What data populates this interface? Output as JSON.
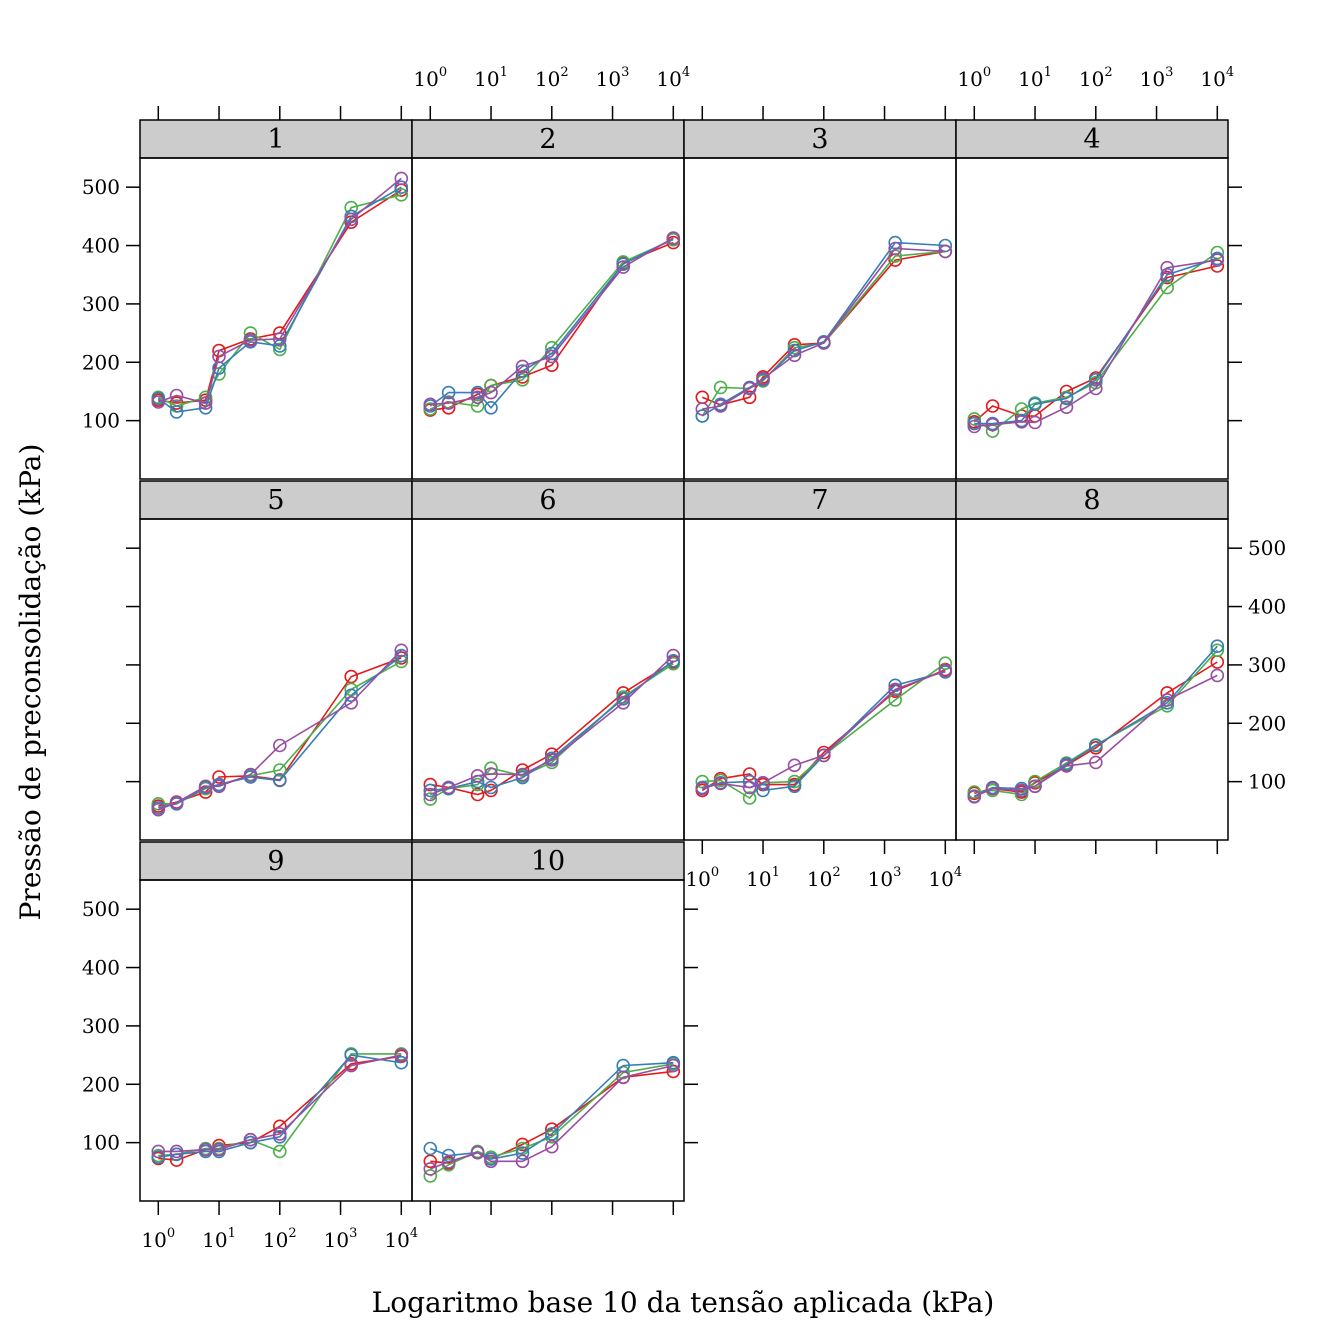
{
  "chart_data": {
    "type": "line",
    "xlabel": "Logaritmo base 10 da tensão aplicada (kPa)",
    "ylabel": "Pressão de preconsolidação (kPa)",
    "x_scale": "log10",
    "xlim": [
      0.5,
      15000
    ],
    "ylim": [
      0,
      550
    ],
    "x_ticks": [
      1,
      10,
      100,
      1000,
      10000
    ],
    "x_tick_base": "10",
    "x_tick_exponents": [
      "0",
      "1",
      "2",
      "3",
      "4"
    ],
    "y_ticks": [
      100,
      200,
      300,
      400,
      500
    ],
    "y_tick_labels": [
      "100",
      "200",
      "300",
      "400",
      "500"
    ],
    "x": [
      1,
      2,
      6,
      10,
      33,
      100,
      1500,
      10000
    ],
    "marker": "open-circle",
    "series_colors": [
      "#E41A1C",
      "#4DAF4A",
      "#377EB8",
      "#984EA3"
    ],
    "panels": [
      {
        "label": "1",
        "series": [
          {
            "values": [
              135,
              130,
              135,
              220,
              240,
              250,
              440,
              495
            ]
          },
          {
            "values": [
              140,
              125,
              140,
              180,
              250,
              222,
              465,
              487
            ]
          },
          {
            "values": [
              138,
              115,
              122,
              190,
              235,
              228,
              450,
              500
            ]
          },
          {
            "values": [
              132,
              143,
              130,
              210,
              238,
              240,
              445,
              515
            ]
          }
        ]
      },
      {
        "label": "2",
        "series": [
          {
            "values": [
              118,
              122,
              145,
              160,
              175,
              195,
              370,
              405
            ]
          },
          {
            "values": [
              120,
              132,
              125,
              160,
              170,
              225,
              372,
              410
            ]
          },
          {
            "values": [
              125,
              148,
              148,
              122,
              185,
              215,
              368,
              412
            ]
          },
          {
            "values": [
              128,
              130,
              140,
              148,
              193,
              210,
              363,
              413
            ]
          }
        ]
      },
      {
        "label": "3",
        "series": [
          {
            "values": [
              140,
              127,
              140,
              175,
              230,
              233,
              375,
              390
            ]
          },
          {
            "values": [
              108,
              157,
              155,
              168,
              225,
              233,
              382,
              390
            ]
          },
          {
            "values": [
              108,
              128,
              157,
              170,
              220,
              235,
              405,
              400
            ]
          },
          {
            "values": [
              120,
              125,
              155,
              172,
              212,
              233,
              395,
              390
            ]
          }
        ]
      },
      {
        "label": "4",
        "series": [
          {
            "values": [
              98,
              125,
              108,
              108,
              150,
              173,
              345,
              365
            ]
          },
          {
            "values": [
              103,
              82,
              120,
              130,
              140,
              165,
              328,
              388
            ]
          },
          {
            "values": [
              95,
              95,
              100,
              128,
              138,
              170,
              350,
              378
            ]
          },
          {
            "values": [
              90,
              93,
              98,
              97,
              123,
              155,
              362,
              375
            ]
          }
        ]
      },
      {
        "label": "5",
        "series": [
          {
            "values": [
              58,
              65,
              82,
              108,
              110,
              103,
              280,
              312
            ]
          },
          {
            "values": [
              62,
              62,
              88,
              95,
              110,
              120,
              258,
              306
            ]
          },
          {
            "values": [
              55,
              62,
              90,
              95,
              108,
              102,
              248,
              316
            ]
          },
          {
            "values": [
              52,
              64,
              92,
              92,
              112,
              162,
              235,
              325
            ]
          }
        ]
      },
      {
        "label": "6",
        "series": [
          {
            "values": [
              95,
              90,
              78,
              85,
              120,
              147,
              252,
              305
            ]
          },
          {
            "values": [
              70,
              88,
              95,
              123,
              110,
              133,
              245,
              302
            ]
          },
          {
            "values": [
              85,
              88,
              100,
              90,
              107,
              140,
              242,
              307
            ]
          },
          {
            "values": [
              78,
              90,
              110,
              113,
              112,
              137,
              235,
              316
            ]
          }
        ]
      },
      {
        "label": "7",
        "series": [
          {
            "values": [
              85,
              105,
              113,
              95,
              95,
              150,
              255,
              292
            ]
          },
          {
            "values": [
              100,
              102,
              72,
              98,
              100,
              145,
              240,
              303
            ]
          },
          {
            "values": [
              90,
              98,
              100,
              85,
              92,
              145,
              265,
              288
            ]
          },
          {
            "values": [
              88,
              97,
              90,
              98,
              128,
              145,
              258,
              290
            ]
          }
        ]
      },
      {
        "label": "8",
        "series": [
          {
            "values": [
              80,
              88,
              82,
              98,
              128,
              158,
              252,
              305
            ]
          },
          {
            "values": [
              82,
              85,
              78,
              100,
              132,
              163,
              230,
              325
            ]
          },
          {
            "values": [
              75,
              90,
              88,
              92,
              130,
              162,
              235,
              332
            ]
          },
          {
            "values": [
              74,
              88,
              85,
              92,
              127,
              133,
              240,
              282
            ]
          }
        ]
      },
      {
        "label": "9",
        "series": [
          {
            "values": [
              73,
              70,
              88,
              95,
              100,
              128,
              235,
              248
            ]
          },
          {
            "values": [
              78,
              80,
              90,
              90,
              105,
              85,
              252,
              252
            ]
          },
          {
            "values": [
              75,
              80,
              85,
              85,
              100,
              110,
              250,
              237
            ]
          },
          {
            "values": [
              85,
              85,
              88,
              88,
              105,
              115,
              232,
              250
            ]
          }
        ]
      },
      {
        "label": "10",
        "series": [
          {
            "values": [
              68,
              65,
              83,
              72,
              97,
              123,
              212,
              222
            ]
          },
          {
            "values": [
              43,
              62,
              85,
              75,
              90,
              110,
              220,
              235
            ]
          },
          {
            "values": [
              90,
              78,
              83,
              72,
              82,
              115,
              232,
              237
            ]
          },
          {
            "values": [
              55,
              67,
              83,
              68,
              68,
              93,
              212,
              232
            ]
          }
        ]
      }
    ]
  }
}
